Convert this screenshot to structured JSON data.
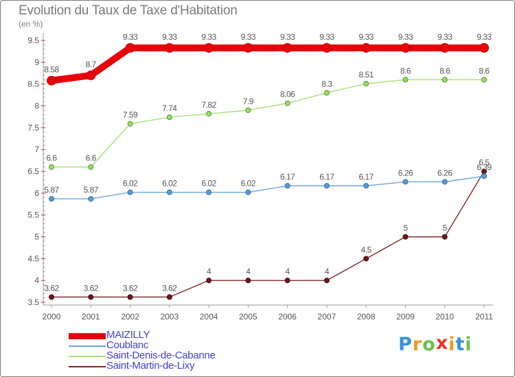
{
  "chart_data": {
    "type": "line",
    "title": "Evolution du Taux de Taxe d'Habitation",
    "subtitle": "(en %)",
    "x": [
      "2000",
      "2001",
      "2002",
      "2003",
      "2004",
      "2005",
      "2006",
      "2007",
      "2008",
      "2009",
      "2010",
      "2011"
    ],
    "ylim": [
      3.5,
      9.5
    ],
    "yticks": [
      "3.5",
      "4",
      "4.5",
      "5",
      "5.5",
      "6",
      "6.5",
      "7",
      "7.5",
      "8",
      "8.5",
      "9",
      "9.5"
    ],
    "grid": false,
    "legend_position": "bottom-left",
    "series": [
      {
        "name": "MAIZILLY",
        "color": "#e8000b",
        "values": [
          8.58,
          8.7,
          9.33,
          9.33,
          9.33,
          9.33,
          9.33,
          9.33,
          9.33,
          9.33,
          9.33,
          9.33
        ],
        "labels": [
          "8.58",
          "8.7",
          "9.33",
          "9.33",
          "9.33",
          "9.33",
          "9.33",
          "9.33",
          "9.33",
          "9.33",
          "9.33",
          "9.33"
        ]
      },
      {
        "name": "Coublanc",
        "color": "#5b9bd5",
        "values": [
          5.87,
          5.87,
          6.02,
          6.02,
          6.02,
          6.02,
          6.17,
          6.17,
          6.17,
          6.26,
          6.26,
          6.39
        ],
        "labels": [
          "5.87",
          "5.87",
          "6.02",
          "6.02",
          "6.02",
          "6.02",
          "6.17",
          "6.17",
          "6.17",
          "6.26",
          "6.26",
          "6.39"
        ]
      },
      {
        "name": "Saint-Denis-de-Cabanne",
        "color": "#99dd66",
        "values": [
          6.6,
          6.6,
          7.59,
          7.74,
          7.82,
          7.9,
          8.06,
          8.3,
          8.51,
          8.6,
          8.6,
          8.6
        ],
        "labels": [
          "6.6",
          "6.6",
          "7.59",
          "7.74",
          "7.82",
          "7.9",
          "8.06",
          "8.3",
          "8.51",
          "8.6",
          "8.6",
          "8.6"
        ]
      },
      {
        "name": "Saint-Martin-de-Lixy",
        "color": "#7b2828",
        "values": [
          3.62,
          3.62,
          3.62,
          3.62,
          4,
          4,
          4,
          4,
          4.5,
          5,
          5,
          6.5
        ],
        "labels": [
          "3.62",
          "3.62",
          "3.62",
          "3.62",
          "4",
          "4",
          "4",
          "4",
          "4.5",
          "5",
          "5",
          "6.5"
        ]
      }
    ]
  },
  "logo": {
    "letters": [
      "P",
      "r",
      "o",
      "x",
      "i",
      "t",
      "i"
    ],
    "colors": [
      "#3a8fd9",
      "#f29a1f",
      "#6cc04a",
      "#e5332a",
      "#f29a1f",
      "#3a8fd9",
      "#6cc04a"
    ]
  }
}
